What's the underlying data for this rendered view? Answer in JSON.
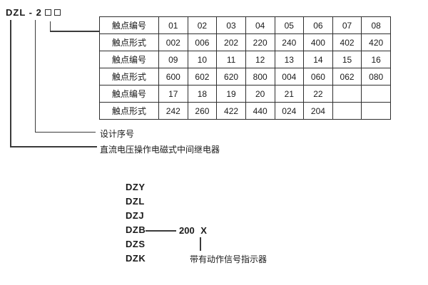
{
  "header": {
    "model_prefix": "DZL - 2",
    "model_boxes": "□□"
  },
  "table": {
    "rows": [
      {
        "label": "触点编号",
        "values": [
          "01",
          "02",
          "03",
          "04",
          "05",
          "06",
          "07",
          "08"
        ]
      },
      {
        "label": "触点形式",
        "values": [
          "002",
          "006",
          "202",
          "220",
          "240",
          "400",
          "402",
          "420"
        ]
      },
      {
        "label": "触点编号",
        "values": [
          "09",
          "10",
          "11",
          "12",
          "13",
          "14",
          "15",
          "16"
        ]
      },
      {
        "label": "触点形式",
        "values": [
          "600",
          "602",
          "620",
          "800",
          "004",
          "060",
          "062",
          "080"
        ]
      },
      {
        "label": "触点编号",
        "values": [
          "17",
          "18",
          "19",
          "20",
          "21",
          "22",
          "",
          ""
        ]
      },
      {
        "label": "触点形式",
        "values": [
          "242",
          "260",
          "422",
          "440",
          "024",
          "204",
          "",
          ""
        ]
      }
    ]
  },
  "annotations": {
    "design_serial_label": "设计序号",
    "relay_type_label": "直流电压操作电磁式中间继电器",
    "indicator_label": "带有动作信号指示器"
  },
  "series_list": {
    "items": [
      "DZY",
      "DZL",
      "DZJ",
      "DZB",
      "DZS",
      "DZK"
    ],
    "dzb_suffix": "200 X"
  },
  "colors": {
    "text": "#1a1a1a",
    "line": "#3a3a3a",
    "table_border": "#2e2e2e",
    "background": "#ffffff"
  }
}
